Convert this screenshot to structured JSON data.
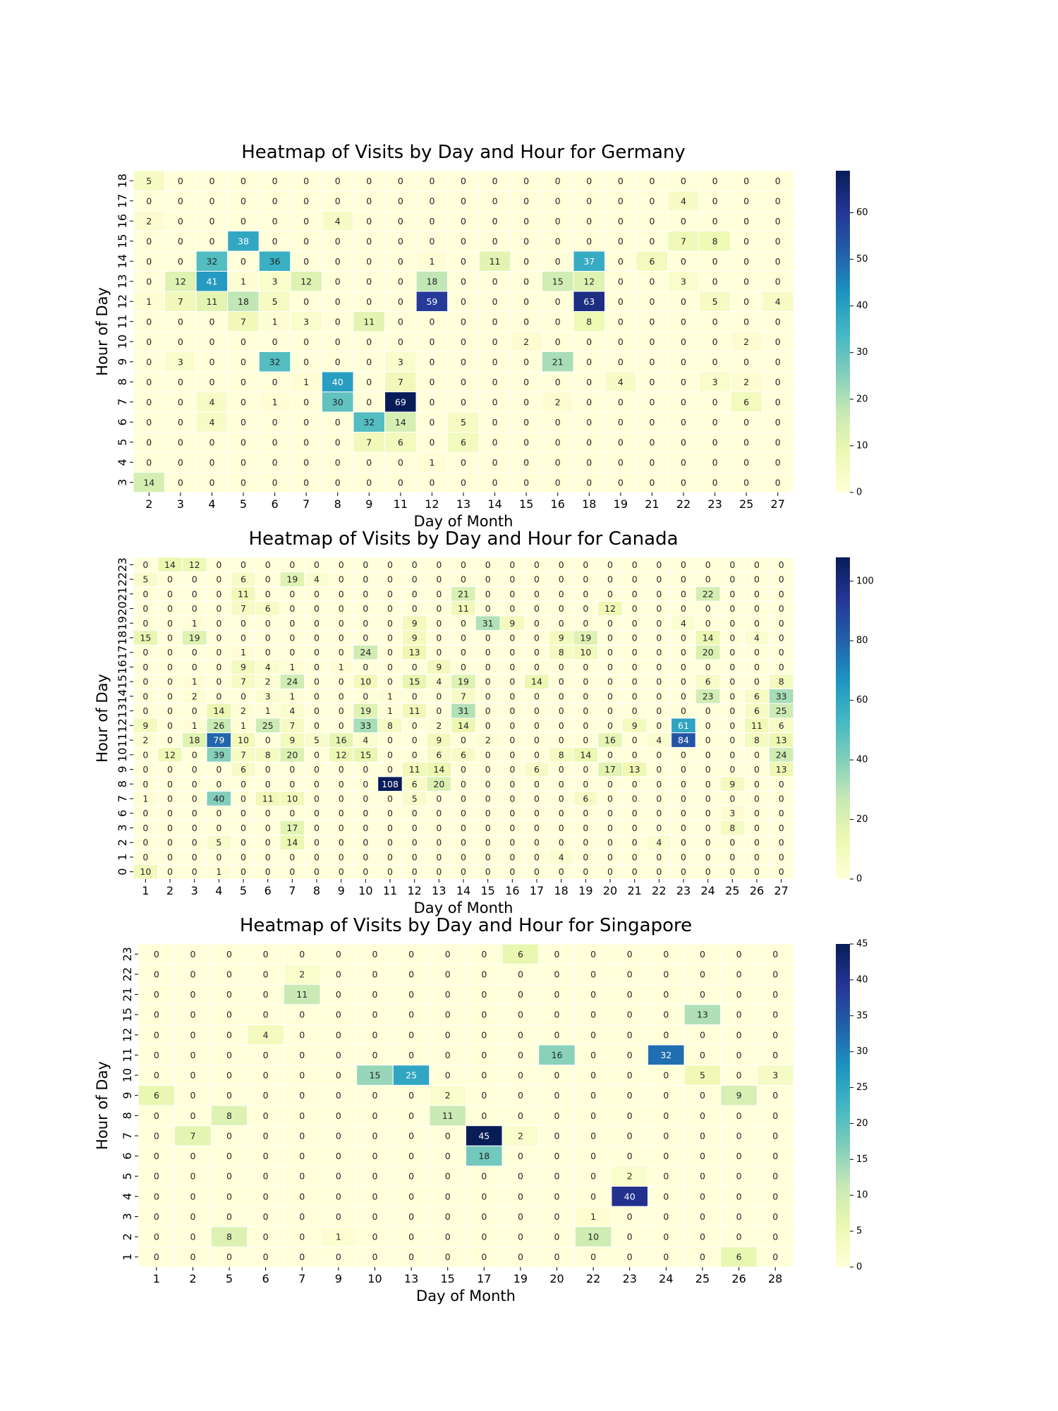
{
  "chart_data": [
    {
      "type": "heatmap",
      "title": "Heatmap of Visits by Day and Hour for Germany",
      "xlabel": "Day of Month",
      "ylabel": "Hour of Day",
      "x": [
        2,
        3,
        4,
        5,
        6,
        7,
        8,
        9,
        11,
        12,
        13,
        14,
        15,
        16,
        18,
        19,
        21,
        22,
        23,
        25,
        27
      ],
      "y": [
        18,
        17,
        16,
        15,
        14,
        13,
        12,
        11,
        10,
        9,
        8,
        7,
        6,
        5,
        4,
        3
      ],
      "values": [
        [
          5,
          0,
          0,
          0,
          0,
          0,
          0,
          0,
          0,
          0,
          0,
          0,
          0,
          0,
          0,
          0,
          0,
          0,
          0,
          0,
          0
        ],
        [
          0,
          0,
          0,
          0,
          0,
          0,
          0,
          0,
          0,
          0,
          0,
          0,
          0,
          0,
          0,
          0,
          0,
          4,
          0,
          0,
          0
        ],
        [
          2,
          0,
          0,
          0,
          0,
          0,
          4,
          0,
          0,
          0,
          0,
          0,
          0,
          0,
          0,
          0,
          0,
          0,
          0,
          0,
          0
        ],
        [
          0,
          0,
          0,
          38,
          0,
          0,
          0,
          0,
          0,
          0,
          0,
          0,
          0,
          0,
          0,
          0,
          0,
          7,
          8,
          0,
          0
        ],
        [
          0,
          0,
          32,
          0,
          36,
          0,
          0,
          0,
          0,
          1,
          0,
          11,
          0,
          0,
          37,
          0,
          6,
          0,
          0,
          0,
          0
        ],
        [
          0,
          12,
          41,
          1,
          3,
          12,
          0,
          0,
          0,
          18,
          0,
          0,
          0,
          15,
          12,
          0,
          0,
          3,
          0,
          0,
          0
        ],
        [
          1,
          7,
          11,
          18,
          5,
          0,
          0,
          0,
          0,
          59,
          0,
          0,
          0,
          0,
          63,
          0,
          0,
          0,
          5,
          0,
          4
        ],
        [
          0,
          0,
          0,
          7,
          1,
          3,
          0,
          11,
          0,
          0,
          0,
          0,
          0,
          0,
          8,
          0,
          0,
          0,
          0,
          0,
          0
        ],
        [
          0,
          0,
          0,
          0,
          0,
          0,
          0,
          0,
          0,
          0,
          0,
          0,
          2,
          0,
          0,
          0,
          0,
          0,
          0,
          2,
          0
        ],
        [
          0,
          3,
          0,
          0,
          32,
          0,
          0,
          0,
          3,
          0,
          0,
          0,
          0,
          21,
          0,
          0,
          0,
          0,
          0,
          0,
          0
        ],
        [
          0,
          0,
          0,
          0,
          0,
          1,
          40,
          0,
          7,
          0,
          0,
          0,
          0,
          0,
          0,
          4,
          0,
          0,
          3,
          2,
          0
        ],
        [
          0,
          0,
          4,
          0,
          1,
          0,
          30,
          0,
          69,
          0,
          0,
          0,
          0,
          2,
          0,
          0,
          0,
          0,
          0,
          6,
          0
        ],
        [
          0,
          0,
          4,
          0,
          0,
          0,
          0,
          32,
          14,
          0,
          5,
          0,
          0,
          0,
          0,
          0,
          0,
          0,
          0,
          0,
          0
        ],
        [
          0,
          0,
          0,
          0,
          0,
          0,
          0,
          7,
          6,
          0,
          6,
          0,
          0,
          0,
          0,
          0,
          0,
          0,
          0,
          0,
          0
        ],
        [
          0,
          0,
          0,
          0,
          0,
          0,
          0,
          0,
          0,
          1,
          0,
          0,
          0,
          0,
          0,
          0,
          0,
          0,
          0,
          0,
          0
        ],
        [
          14,
          0,
          0,
          0,
          0,
          0,
          0,
          0,
          0,
          0,
          0,
          0,
          0,
          0,
          0,
          0,
          0,
          0,
          0,
          0,
          0
        ]
      ],
      "colorbar": {
        "range": [
          0,
          69
        ],
        "ticks": [
          0,
          10,
          20,
          30,
          40,
          50,
          60
        ]
      },
      "colormap": "YlGnBu"
    },
    {
      "type": "heatmap",
      "title": "Heatmap of Visits by Day and Hour for Canada",
      "xlabel": "Day of Month",
      "ylabel": "Hour of Day",
      "x": [
        1,
        2,
        3,
        4,
        5,
        6,
        7,
        8,
        9,
        10,
        11,
        12,
        13,
        14,
        15,
        16,
        17,
        18,
        19,
        20,
        21,
        22,
        23,
        24,
        25,
        26,
        27
      ],
      "y": [
        23,
        22,
        21,
        20,
        19,
        18,
        17,
        16,
        15,
        14,
        13,
        12,
        11,
        10,
        9,
        8,
        7,
        6,
        3,
        2,
        1,
        0
      ],
      "values": [
        [
          0,
          14,
          12,
          0,
          0,
          0,
          0,
          0,
          0,
          0,
          0,
          0,
          0,
          0,
          0,
          0,
          0,
          0,
          0,
          0,
          0,
          0,
          0,
          0,
          0,
          0,
          0
        ],
        [
          5,
          0,
          0,
          0,
          6,
          0,
          19,
          4,
          0,
          0,
          0,
          0,
          0,
          0,
          0,
          0,
          0,
          0,
          0,
          0,
          0,
          0,
          0,
          0,
          0,
          0,
          0
        ],
        [
          0,
          0,
          0,
          0,
          11,
          0,
          0,
          0,
          0,
          0,
          0,
          0,
          0,
          21,
          0,
          0,
          0,
          0,
          0,
          0,
          0,
          0,
          0,
          22,
          0,
          0,
          0
        ],
        [
          0,
          0,
          0,
          0,
          7,
          6,
          0,
          0,
          0,
          0,
          0,
          0,
          0,
          11,
          0,
          0,
          0,
          0,
          0,
          12,
          0,
          0,
          0,
          0,
          0,
          0,
          0
        ],
        [
          0,
          0,
          1,
          0,
          0,
          0,
          0,
          0,
          0,
          0,
          0,
          9,
          0,
          0,
          31,
          9,
          0,
          0,
          0,
          0,
          0,
          0,
          4,
          0,
          0,
          0,
          0
        ],
        [
          15,
          0,
          19,
          0,
          0,
          0,
          0,
          0,
          0,
          0,
          0,
          9,
          0,
          0,
          0,
          0,
          0,
          9,
          19,
          0,
          0,
          0,
          0,
          14,
          0,
          4,
          0
        ],
        [
          0,
          0,
          0,
          0,
          1,
          0,
          0,
          0,
          0,
          24,
          0,
          13,
          0,
          0,
          0,
          0,
          0,
          8,
          10,
          0,
          0,
          0,
          0,
          20,
          0,
          0,
          0
        ],
        [
          0,
          0,
          0,
          0,
          9,
          4,
          1,
          0,
          1,
          0,
          0,
          0,
          9,
          0,
          0,
          0,
          0,
          0,
          0,
          0,
          0,
          0,
          0,
          0,
          0,
          0,
          0
        ],
        [
          0,
          0,
          1,
          0,
          7,
          2,
          24,
          0,
          0,
          10,
          0,
          15,
          4,
          19,
          0,
          0,
          14,
          0,
          0,
          0,
          0,
          0,
          0,
          6,
          0,
          0,
          8
        ],
        [
          0,
          0,
          2,
          0,
          0,
          3,
          1,
          0,
          0,
          0,
          1,
          0,
          0,
          7,
          0,
          0,
          0,
          0,
          0,
          0,
          0,
          0,
          0,
          23,
          0,
          6,
          33
        ],
        [
          0,
          0,
          0,
          14,
          2,
          1,
          4,
          0,
          0,
          19,
          1,
          11,
          0,
          31,
          0,
          0,
          0,
          0,
          0,
          0,
          0,
          0,
          0,
          0,
          0,
          6,
          25
        ],
        [
          9,
          0,
          1,
          26,
          1,
          25,
          7,
          0,
          0,
          33,
          8,
          0,
          2,
          14,
          0,
          0,
          0,
          0,
          0,
          0,
          9,
          0,
          61,
          0,
          0,
          11,
          6
        ],
        [
          2,
          0,
          18,
          79,
          10,
          0,
          9,
          5,
          16,
          4,
          0,
          0,
          9,
          0,
          2,
          0,
          0,
          0,
          0,
          16,
          0,
          4,
          84,
          0,
          0,
          8,
          13
        ],
        [
          0,
          12,
          0,
          39,
          7,
          8,
          20,
          0,
          12,
          15,
          0,
          0,
          6,
          6,
          0,
          0,
          0,
          8,
          14,
          0,
          0,
          0,
          0,
          0,
          0,
          0,
          24
        ],
        [
          0,
          0,
          0,
          0,
          6,
          0,
          0,
          0,
          0,
          0,
          0,
          11,
          14,
          0,
          0,
          0,
          6,
          0,
          0,
          17,
          13,
          0,
          0,
          0,
          0,
          0,
          13
        ],
        [
          0,
          0,
          0,
          0,
          0,
          0,
          0,
          0,
          0,
          0,
          108,
          6,
          20,
          0,
          0,
          0,
          0,
          0,
          0,
          0,
          0,
          0,
          0,
          0,
          9,
          0,
          0
        ],
        [
          1,
          0,
          0,
          40,
          0,
          11,
          10,
          0,
          0,
          0,
          0,
          5,
          0,
          0,
          0,
          0,
          0,
          0,
          6,
          0,
          0,
          0,
          0,
          0,
          0,
          0,
          0
        ],
        [
          0,
          0,
          0,
          0,
          0,
          0,
          0,
          0,
          0,
          0,
          0,
          0,
          0,
          0,
          0,
          0,
          0,
          0,
          0,
          0,
          0,
          0,
          0,
          0,
          3,
          0,
          0
        ],
        [
          0,
          0,
          0,
          0,
          0,
          0,
          17,
          0,
          0,
          0,
          0,
          0,
          0,
          0,
          0,
          0,
          0,
          0,
          0,
          0,
          0,
          0,
          0,
          0,
          8,
          0,
          0
        ],
        [
          0,
          0,
          0,
          5,
          0,
          0,
          14,
          0,
          0,
          0,
          0,
          0,
          0,
          0,
          0,
          0,
          0,
          0,
          0,
          0,
          0,
          4,
          0,
          0,
          0,
          0,
          0
        ],
        [
          0,
          0,
          0,
          0,
          0,
          0,
          0,
          0,
          0,
          0,
          0,
          0,
          0,
          0,
          0,
          0,
          0,
          4,
          0,
          0,
          0,
          0,
          0,
          0,
          0,
          0,
          0
        ],
        [
          10,
          0,
          0,
          1,
          0,
          0,
          0,
          0,
          0,
          0,
          0,
          0,
          0,
          0,
          0,
          0,
          0,
          0,
          0,
          0,
          0,
          0,
          0,
          0,
          0,
          0,
          0
        ]
      ],
      "colorbar": {
        "range": [
          0,
          108
        ],
        "ticks": [
          0,
          20,
          40,
          60,
          80,
          100
        ]
      },
      "colormap": "YlGnBu"
    },
    {
      "type": "heatmap",
      "title": "Heatmap of Visits by Day and Hour for Singapore",
      "xlabel": "Day of Month",
      "ylabel": "Hour of Day",
      "x": [
        1,
        2,
        5,
        6,
        7,
        9,
        10,
        13,
        15,
        17,
        19,
        20,
        22,
        23,
        24,
        25,
        26,
        28
      ],
      "y": [
        23,
        22,
        21,
        15,
        12,
        11,
        10,
        9,
        8,
        7,
        6,
        5,
        4,
        3,
        2,
        1
      ],
      "values": [
        [
          0,
          0,
          0,
          0,
          0,
          0,
          0,
          0,
          0,
          0,
          6,
          0,
          0,
          0,
          0,
          0,
          0,
          0
        ],
        [
          0,
          0,
          0,
          0,
          2,
          0,
          0,
          0,
          0,
          0,
          0,
          0,
          0,
          0,
          0,
          0,
          0,
          0
        ],
        [
          0,
          0,
          0,
          0,
          11,
          0,
          0,
          0,
          0,
          0,
          0,
          0,
          0,
          0,
          0,
          0,
          0,
          0
        ],
        [
          0,
          0,
          0,
          0,
          0,
          0,
          0,
          0,
          0,
          0,
          0,
          0,
          0,
          0,
          0,
          13,
          0,
          0
        ],
        [
          0,
          0,
          0,
          4,
          0,
          0,
          0,
          0,
          0,
          0,
          0,
          0,
          0,
          0,
          0,
          0,
          0,
          0
        ],
        [
          0,
          0,
          0,
          0,
          0,
          0,
          0,
          0,
          0,
          0,
          0,
          16,
          0,
          0,
          32,
          0,
          0,
          0
        ],
        [
          0,
          0,
          0,
          0,
          0,
          0,
          15,
          25,
          0,
          0,
          0,
          0,
          0,
          0,
          0,
          5,
          0,
          3
        ],
        [
          6,
          0,
          0,
          0,
          0,
          0,
          0,
          0,
          2,
          0,
          0,
          0,
          0,
          0,
          0,
          0,
          9,
          0
        ],
        [
          0,
          0,
          8,
          0,
          0,
          0,
          0,
          0,
          11,
          0,
          0,
          0,
          0,
          0,
          0,
          0,
          0,
          0
        ],
        [
          0,
          7,
          0,
          0,
          0,
          0,
          0,
          0,
          0,
          45,
          2,
          0,
          0,
          0,
          0,
          0,
          0,
          0
        ],
        [
          0,
          0,
          0,
          0,
          0,
          0,
          0,
          0,
          0,
          18,
          0,
          0,
          0,
          0,
          0,
          0,
          0,
          0
        ],
        [
          0,
          0,
          0,
          0,
          0,
          0,
          0,
          0,
          0,
          0,
          0,
          0,
          0,
          2,
          0,
          0,
          0,
          0
        ],
        [
          0,
          0,
          0,
          0,
          0,
          0,
          0,
          0,
          0,
          0,
          0,
          0,
          0,
          40,
          0,
          0,
          0,
          0
        ],
        [
          0,
          0,
          0,
          0,
          0,
          0,
          0,
          0,
          0,
          0,
          0,
          0,
          1,
          0,
          0,
          0,
          0,
          0
        ],
        [
          0,
          0,
          8,
          0,
          0,
          1,
          0,
          0,
          0,
          0,
          0,
          0,
          10,
          0,
          0,
          0,
          0,
          0
        ],
        [
          0,
          0,
          0,
          0,
          0,
          0,
          0,
          0,
          0,
          0,
          0,
          0,
          0,
          0,
          0,
          0,
          6,
          0
        ]
      ],
      "colorbar": {
        "range": [
          0,
          45
        ],
        "ticks": [
          0,
          5,
          10,
          15,
          20,
          25,
          30,
          35,
          40,
          45
        ]
      },
      "colormap": "YlGnBu"
    }
  ]
}
